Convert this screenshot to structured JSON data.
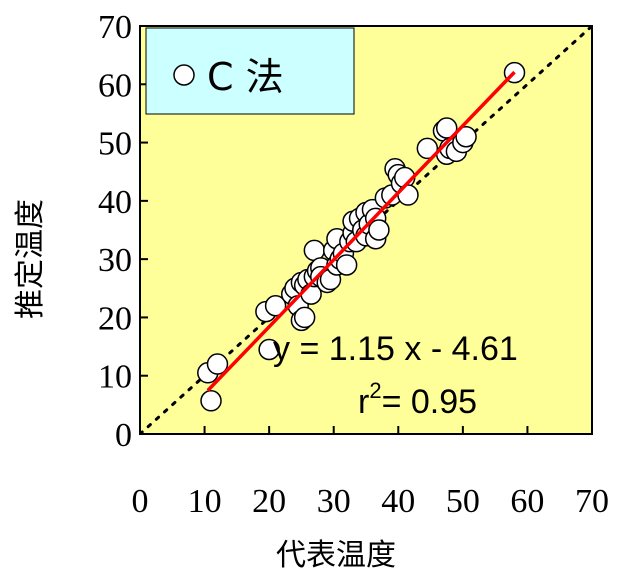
{
  "chart_data": {
    "type": "scatter",
    "xlabel": "代表温度",
    "ylabel": "推定温度",
    "xlim": [
      0,
      70
    ],
    "ylim": [
      0,
      70
    ],
    "xticks": [
      "0",
      "10",
      "20",
      "30",
      "40",
      "50",
      "60",
      "70"
    ],
    "yticks": [
      "0",
      "10",
      "20",
      "30",
      "40",
      "50",
      "60",
      "70"
    ],
    "legend": {
      "label": "C 法",
      "position": "top-left"
    },
    "plot_background": "#FFFF99",
    "legend_background": "#CCFFFF",
    "fit_line": {
      "slope": 1.15,
      "intercept": -4.61,
      "x_range": [
        10.5,
        58
      ],
      "color": "#FF0000"
    },
    "identity_line": {
      "style": "dotted",
      "color": "#000000"
    },
    "annotation": {
      "equation": "y = 1.15 x - 4.61",
      "r_label": "r",
      "r_sup": "2",
      "r_value": "= 0.95"
    },
    "series": [
      {
        "name": "C 法",
        "marker": "open-circle",
        "points": [
          [
            10.5,
            10.5
          ],
          [
            11.0,
            5.7
          ],
          [
            12.0,
            12.0
          ],
          [
            19.5,
            21.0
          ],
          [
            20.0,
            14.5
          ],
          [
            21.0,
            22.0
          ],
          [
            23.5,
            24.0
          ],
          [
            24.0,
            25.0
          ],
          [
            24.5,
            22.0
          ],
          [
            25.0,
            19.5
          ],
          [
            25.0,
            26.0
          ],
          [
            25.5,
            25.5
          ],
          [
            25.5,
            20.0
          ],
          [
            26.0,
            26.5
          ],
          [
            26.5,
            24.0
          ],
          [
            27.0,
            27.0
          ],
          [
            27.0,
            31.5
          ],
          [
            27.5,
            28.0
          ],
          [
            28.0,
            28.5
          ],
          [
            28.0,
            27.0
          ],
          [
            29.0,
            26.0
          ],
          [
            29.5,
            26.5
          ],
          [
            30.0,
            31.5
          ],
          [
            30.5,
            33.5
          ],
          [
            30.5,
            29.0
          ],
          [
            31.0,
            30.0
          ],
          [
            31.5,
            31.0
          ],
          [
            32.0,
            29.0
          ],
          [
            32.5,
            33.0
          ],
          [
            33.0,
            34.5
          ],
          [
            33.0,
            36.5
          ],
          [
            33.5,
            33.0
          ],
          [
            34.0,
            37.0
          ],
          [
            34.5,
            35.0
          ],
          [
            35.0,
            38.0
          ],
          [
            35.0,
            34.0
          ],
          [
            35.5,
            36.0
          ],
          [
            36.0,
            38.5
          ],
          [
            36.5,
            37.0
          ],
          [
            36.5,
            33.5
          ],
          [
            37.0,
            35.0
          ],
          [
            38.0,
            40.5
          ],
          [
            39.0,
            41.0
          ],
          [
            39.5,
            45.5
          ],
          [
            40.0,
            44.5
          ],
          [
            40.5,
            43.0
          ],
          [
            41.0,
            44.0
          ],
          [
            41.5,
            41.0
          ],
          [
            44.5,
            49.0
          ],
          [
            47.0,
            52.0
          ],
          [
            47.5,
            52.5
          ],
          [
            47.5,
            48.0
          ],
          [
            48.0,
            49.0
          ],
          [
            49.0,
            48.5
          ],
          [
            50.0,
            50.0
          ],
          [
            50.5,
            51.0
          ],
          [
            58.0,
            62.0
          ]
        ]
      }
    ]
  }
}
